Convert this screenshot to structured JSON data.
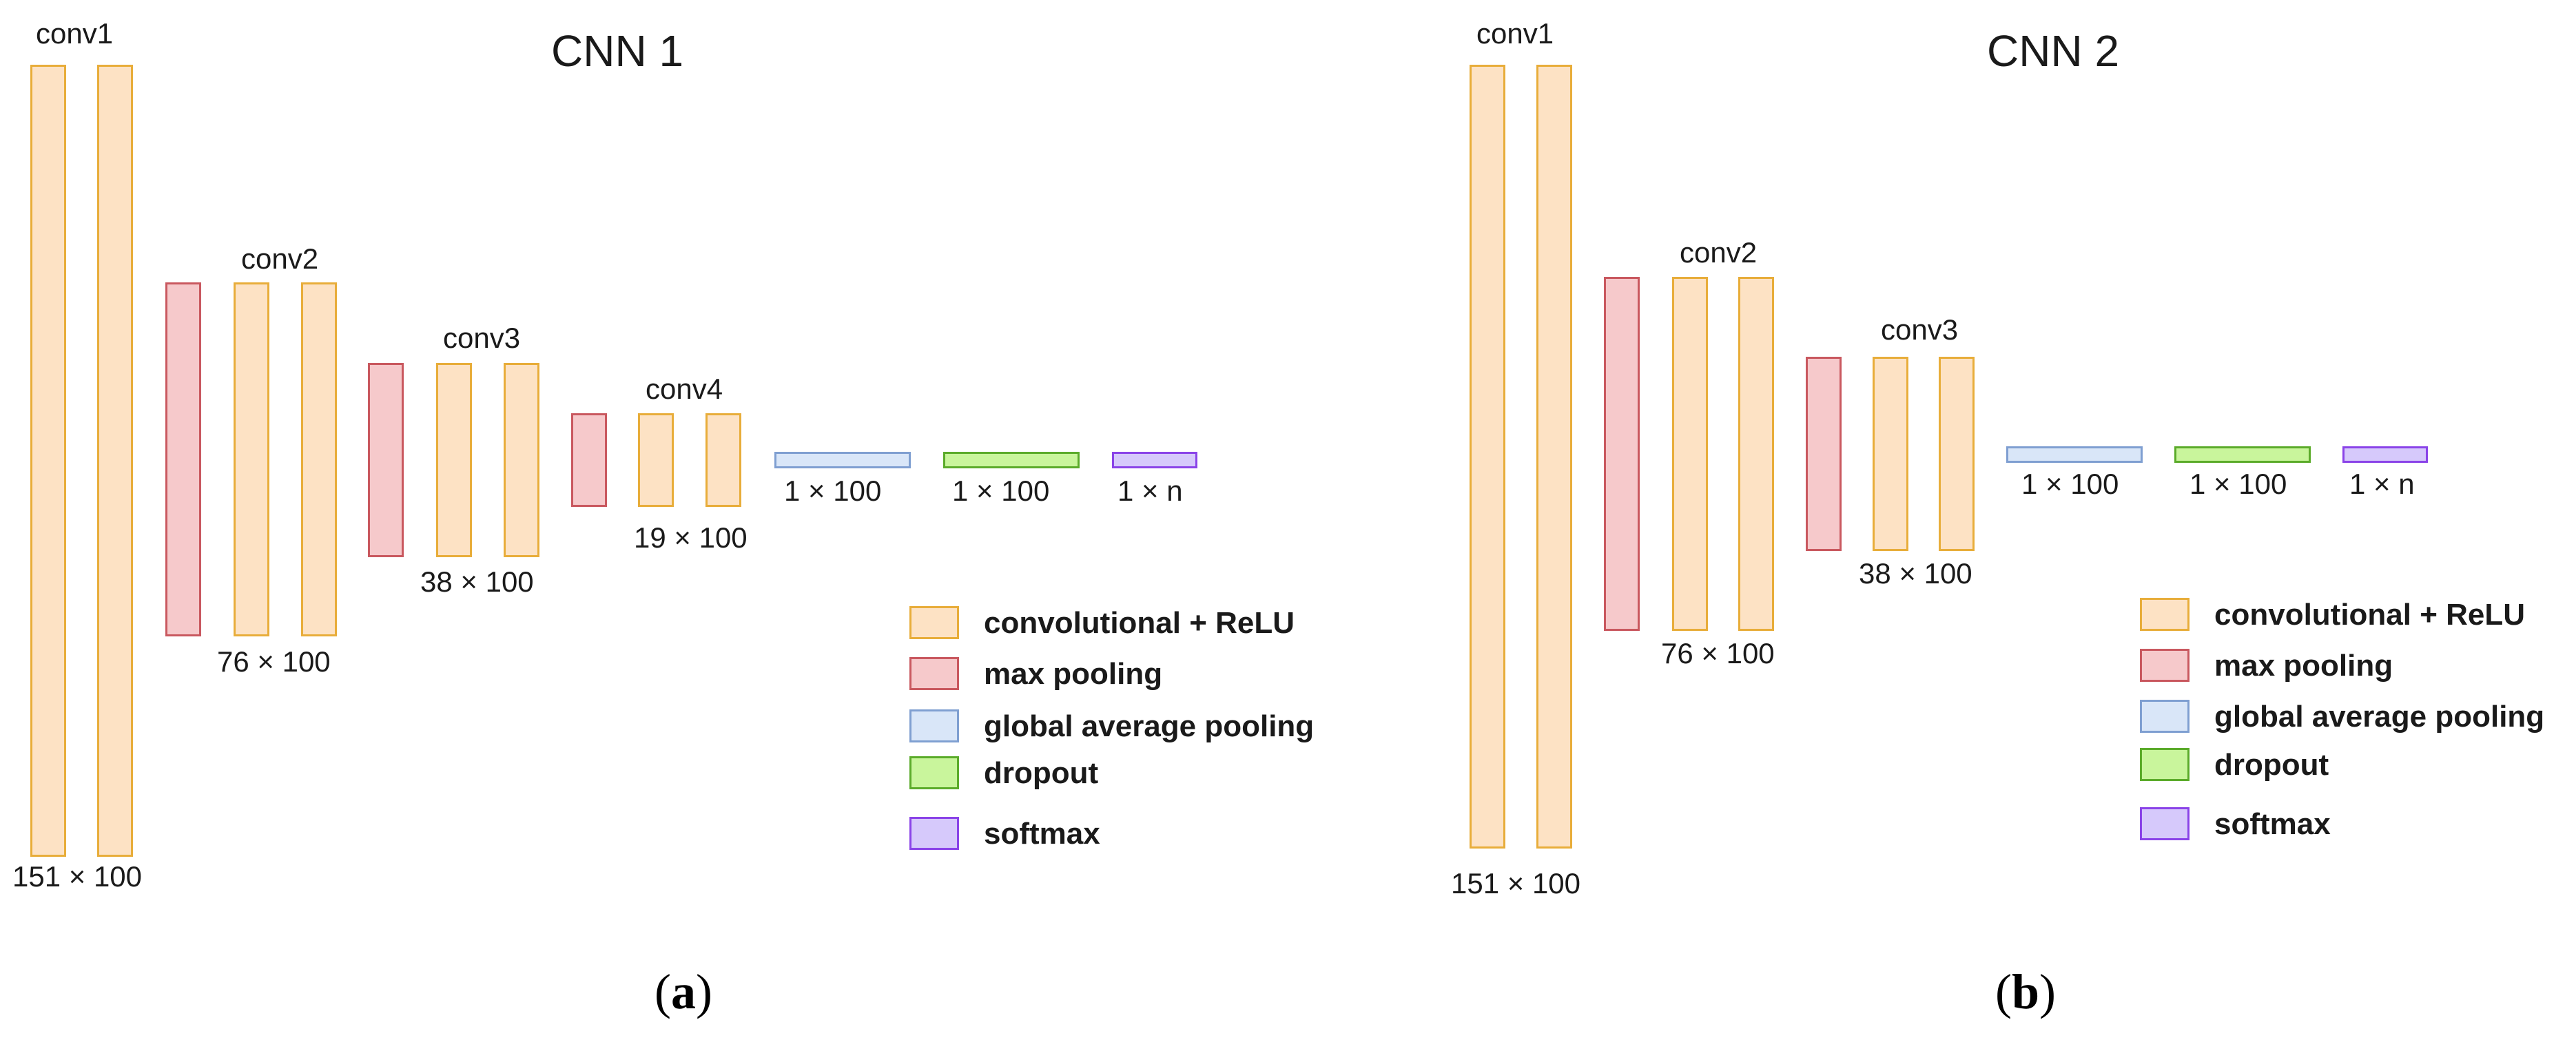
{
  "panels": [
    {
      "id": "a",
      "title": "CNN 1",
      "layer_labels": [
        "conv1",
        "conv2",
        "conv3",
        "conv4"
      ],
      "dim_labels": [
        "151 × 100",
        "76 × 100",
        "38 × 100",
        "19 × 100",
        "1 × 100",
        "1 × 100",
        "1 × n"
      ],
      "caption_open": "(",
      "caption_letter": "a",
      "caption_close": ")"
    },
    {
      "id": "b",
      "title": "CNN 2",
      "layer_labels": [
        "conv1",
        "conv2",
        "conv3"
      ],
      "dim_labels": [
        "151 × 100",
        "76 × 100",
        "38 × 100",
        "1 × 100",
        "1 × 100",
        "1 × n"
      ],
      "caption_open": "(",
      "caption_letter": "b",
      "caption_close": ")"
    }
  ],
  "legend": [
    {
      "key": "conv",
      "label": "convolutional + ReLU",
      "color": "#fde2c4",
      "border": "#e8ad3a"
    },
    {
      "key": "pool",
      "label": "max pooling",
      "color": "#f6c9cb",
      "border": "#c9585f"
    },
    {
      "key": "gap",
      "label": "global average pooling",
      "color": "#d9e6f8",
      "border": "#7f9fd1"
    },
    {
      "key": "drop",
      "label": "dropout",
      "color": "#c9f59c",
      "border": "#5bab2a"
    },
    {
      "key": "soft",
      "label": "softmax",
      "color": "#d6c9fb",
      "border": "#8a43e8"
    }
  ]
}
